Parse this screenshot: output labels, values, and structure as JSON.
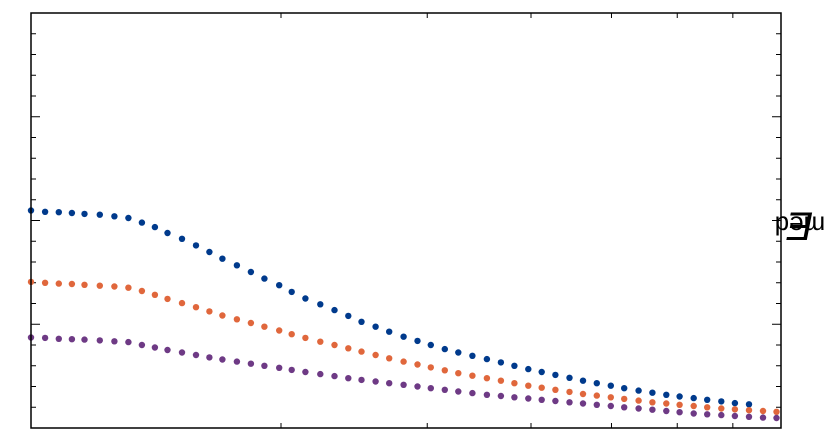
{
  "chart_data": {
    "type": "scatter",
    "title": "",
    "xlabel": "",
    "ylabel": {
      "main": "E",
      "sub": "med"
    },
    "x_scale": "log",
    "xlim": [
      1,
      8
    ],
    "ylim": [
      0,
      1
    ],
    "grid": false,
    "legend": "none",
    "series": [
      {
        "color": "#003a8c",
        "points": [
          [
            1.0,
            0.524
          ],
          [
            1.04,
            0.521
          ],
          [
            1.08,
            0.52
          ],
          [
            1.12,
            0.518
          ],
          [
            1.16,
            0.516
          ],
          [
            1.21,
            0.514
          ],
          [
            1.26,
            0.51
          ],
          [
            1.31,
            0.506
          ],
          [
            1.36,
            0.495
          ],
          [
            1.41,
            0.484
          ],
          [
            1.46,
            0.47
          ],
          [
            1.52,
            0.456
          ],
          [
            1.58,
            0.44
          ],
          [
            1.64,
            0.424
          ],
          [
            1.7,
            0.408
          ],
          [
            1.77,
            0.392
          ],
          [
            1.84,
            0.376
          ],
          [
            1.91,
            0.36
          ],
          [
            1.99,
            0.344
          ],
          [
            2.06,
            0.328
          ],
          [
            2.14,
            0.312
          ],
          [
            2.23,
            0.298
          ],
          [
            2.32,
            0.284
          ],
          [
            2.41,
            0.27
          ],
          [
            2.5,
            0.256
          ],
          [
            2.6,
            0.244
          ],
          [
            2.7,
            0.232
          ],
          [
            2.81,
            0.22
          ],
          [
            2.92,
            0.21
          ],
          [
            3.03,
            0.2
          ],
          [
            3.15,
            0.19
          ],
          [
            3.27,
            0.182
          ],
          [
            3.4,
            0.174
          ],
          [
            3.54,
            0.166
          ],
          [
            3.68,
            0.158
          ],
          [
            3.82,
            0.15
          ],
          [
            3.97,
            0.142
          ],
          [
            4.12,
            0.135
          ],
          [
            4.28,
            0.128
          ],
          [
            4.45,
            0.121
          ],
          [
            4.62,
            0.114
          ],
          [
            4.8,
            0.108
          ],
          [
            4.99,
            0.102
          ],
          [
            5.18,
            0.096
          ],
          [
            5.39,
            0.09
          ],
          [
            5.6,
            0.085
          ],
          [
            5.82,
            0.08
          ],
          [
            6.04,
            0.076
          ],
          [
            6.28,
            0.072
          ],
          [
            6.52,
            0.068
          ],
          [
            6.78,
            0.064
          ],
          [
            7.04,
            0.06
          ],
          [
            7.32,
            0.057
          ]
        ]
      },
      {
        "color": "#e0673c",
        "points": [
          [
            1.0,
            0.352
          ],
          [
            1.04,
            0.35
          ],
          [
            1.08,
            0.348
          ],
          [
            1.12,
            0.347
          ],
          [
            1.16,
            0.345
          ],
          [
            1.21,
            0.343
          ],
          [
            1.26,
            0.341
          ],
          [
            1.31,
            0.338
          ],
          [
            1.36,
            0.33
          ],
          [
            1.41,
            0.321
          ],
          [
            1.46,
            0.311
          ],
          [
            1.52,
            0.301
          ],
          [
            1.58,
            0.291
          ],
          [
            1.64,
            0.281
          ],
          [
            1.7,
            0.271
          ],
          [
            1.77,
            0.262
          ],
          [
            1.84,
            0.253
          ],
          [
            1.91,
            0.244
          ],
          [
            1.99,
            0.235
          ],
          [
            2.06,
            0.226
          ],
          [
            2.14,
            0.217
          ],
          [
            2.23,
            0.208
          ],
          [
            2.32,
            0.2
          ],
          [
            2.41,
            0.192
          ],
          [
            2.5,
            0.184
          ],
          [
            2.6,
            0.176
          ],
          [
            2.7,
            0.168
          ],
          [
            2.81,
            0.16
          ],
          [
            2.92,
            0.153
          ],
          [
            3.03,
            0.146
          ],
          [
            3.15,
            0.139
          ],
          [
            3.27,
            0.132
          ],
          [
            3.4,
            0.126
          ],
          [
            3.54,
            0.12
          ],
          [
            3.68,
            0.114
          ],
          [
            3.82,
            0.108
          ],
          [
            3.97,
            0.102
          ],
          [
            4.12,
            0.097
          ],
          [
            4.28,
            0.092
          ],
          [
            4.45,
            0.087
          ],
          [
            4.62,
            0.082
          ],
          [
            4.8,
            0.078
          ],
          [
            4.99,
            0.074
          ],
          [
            5.18,
            0.07
          ],
          [
            5.39,
            0.066
          ],
          [
            5.6,
            0.062
          ],
          [
            5.82,
            0.059
          ],
          [
            6.04,
            0.056
          ],
          [
            6.28,
            0.053
          ],
          [
            6.52,
            0.05
          ],
          [
            6.78,
            0.047
          ],
          [
            7.04,
            0.045
          ],
          [
            7.32,
            0.043
          ],
          [
            7.61,
            0.041
          ],
          [
            7.9,
            0.039
          ]
        ]
      },
      {
        "color": "#6e3a85",
        "points": [
          [
            1.0,
            0.218
          ],
          [
            1.04,
            0.217
          ],
          [
            1.08,
            0.215
          ],
          [
            1.12,
            0.214
          ],
          [
            1.16,
            0.213
          ],
          [
            1.21,
            0.211
          ],
          [
            1.26,
            0.209
          ],
          [
            1.31,
            0.207
          ],
          [
            1.36,
            0.2
          ],
          [
            1.41,
            0.194
          ],
          [
            1.46,
            0.188
          ],
          [
            1.52,
            0.182
          ],
          [
            1.58,
            0.176
          ],
          [
            1.64,
            0.17
          ],
          [
            1.7,
            0.165
          ],
          [
            1.77,
            0.16
          ],
          [
            1.84,
            0.155
          ],
          [
            1.91,
            0.15
          ],
          [
            1.99,
            0.145
          ],
          [
            2.06,
            0.14
          ],
          [
            2.14,
            0.135
          ],
          [
            2.23,
            0.13
          ],
          [
            2.32,
            0.125
          ],
          [
            2.41,
            0.12
          ],
          [
            2.5,
            0.116
          ],
          [
            2.6,
            0.112
          ],
          [
            2.7,
            0.108
          ],
          [
            2.81,
            0.104
          ],
          [
            2.92,
            0.1
          ],
          [
            3.03,
            0.096
          ],
          [
            3.15,
            0.092
          ],
          [
            3.27,
            0.088
          ],
          [
            3.4,
            0.084
          ],
          [
            3.54,
            0.08
          ],
          [
            3.68,
            0.077
          ],
          [
            3.82,
            0.074
          ],
          [
            3.97,
            0.071
          ],
          [
            4.12,
            0.068
          ],
          [
            4.28,
            0.065
          ],
          [
            4.45,
            0.062
          ],
          [
            4.62,
            0.059
          ],
          [
            4.8,
            0.056
          ],
          [
            4.99,
            0.053
          ],
          [
            5.18,
            0.05
          ],
          [
            5.39,
            0.047
          ],
          [
            5.6,
            0.044
          ],
          [
            5.82,
            0.041
          ],
          [
            6.04,
            0.038
          ],
          [
            6.28,
            0.035
          ],
          [
            6.52,
            0.033
          ],
          [
            6.78,
            0.031
          ],
          [
            7.04,
            0.029
          ],
          [
            7.32,
            0.027
          ],
          [
            7.61,
            0.025
          ],
          [
            7.9,
            0.024
          ]
        ]
      }
    ]
  }
}
